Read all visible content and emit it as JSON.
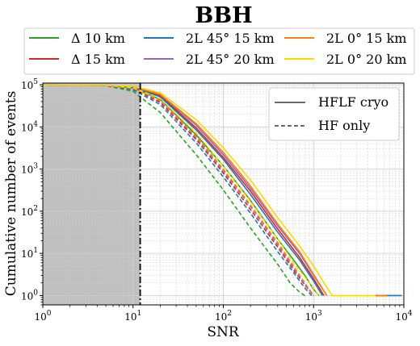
{
  "chart_data": {
    "type": "line",
    "title": "BBH",
    "xlabel": "SNR",
    "ylabel": "Cumulative number of events",
    "x_scale": "log",
    "y_scale": "log",
    "xlim": [
      1,
      10000
    ],
    "ylim": [
      0.6,
      110000
    ],
    "grid": true,
    "threshold_snr": 12,
    "threshold_style": "dash-dot",
    "shaded_region": [
      1,
      12
    ],
    "x_ticks": [
      "10^0",
      "10^1",
      "10^2",
      "10^3",
      "10^4"
    ],
    "y_ticks": [
      "10^0",
      "10^1",
      "10^2",
      "10^3",
      "10^4",
      "10^5"
    ],
    "legend_top": {
      "placement": "top, above plot",
      "entries": [
        "Δ 10 km",
        "Δ 15 km",
        "2L 45° 15 km",
        "2L 45° 20 km",
        "2L 0° 15 km",
        "2L 0° 20 km"
      ]
    },
    "legend_style": {
      "placement": "top-right",
      "entries": [
        "HFLF cryo",
        "HF only"
      ]
    },
    "colors": {
      "Δ 10 km": "#2ca02c",
      "Δ 15 km": "#d62728",
      "2L 45° 15 km": "#1f77b4",
      "2L 45° 20 km": "#9467bd",
      "2L 0° 15 km": "#ff7f0e",
      "2L 0° 20 km": "#ffd700",
      "shade": "#c0c0c0",
      "legend_line": "#555555"
    },
    "series": [
      {
        "name": "Δ 10 km",
        "style": "solid",
        "x": [
          1,
          5,
          10,
          20,
          50,
          100,
          200,
          400,
          600,
          800,
          1000,
          1150
        ],
        "y": [
          100000,
          98000,
          85000,
          45000,
          6500,
          1200,
          180,
          22,
          7,
          3,
          1.4,
          1
        ]
      },
      {
        "name": "Δ 10 km",
        "style": "dashed",
        "x": [
          1,
          5,
          10,
          20,
          50,
          100,
          200,
          400,
          550,
          700,
          800
        ],
        "y": [
          100000,
          96000,
          70000,
          22000,
          2200,
          320,
          40,
          5.5,
          2,
          1.2,
          1
        ]
      },
      {
        "name": "Δ 15 km",
        "style": "solid",
        "x": [
          1,
          5,
          10,
          20,
          50,
          100,
          200,
          400,
          700,
          1000,
          1300
        ],
        "y": [
          100000,
          98500,
          89000,
          55000,
          9500,
          1900,
          300,
          38,
          8,
          2.5,
          1
        ]
      },
      {
        "name": "Δ 15 km",
        "style": "dashed",
        "x": [
          1,
          5,
          10,
          20,
          50,
          100,
          200,
          400,
          600,
          850,
          1000
        ],
        "y": [
          100000,
          97500,
          80000,
          38000,
          5000,
          800,
          110,
          14,
          4,
          1.5,
          1
        ]
      },
      {
        "name": "2L 45° 15 km",
        "style": "solid",
        "x": [
          1,
          5,
          10,
          20,
          50,
          100,
          200,
          400,
          700,
          1000,
          1250
        ],
        "y": [
          100000,
          98300,
          87000,
          52000,
          8500,
          1700,
          250,
          32,
          7,
          2.2,
          1
        ]
      },
      {
        "name": "2L 45° 15 km",
        "style": "dashed",
        "x": [
          1,
          5,
          10,
          20,
          50,
          100,
          200,
          400,
          600,
          800,
          950
        ],
        "y": [
          100000,
          97000,
          76000,
          34000,
          4200,
          650,
          90,
          11,
          3.5,
          1.5,
          1
        ]
      },
      {
        "name": "2L 45° 20 km",
        "style": "solid",
        "x": [
          1,
          5,
          10,
          20,
          50,
          100,
          200,
          400,
          700,
          1000,
          1400
        ],
        "y": [
          100000,
          98700,
          90000,
          58000,
          11000,
          2200,
          350,
          45,
          10,
          3,
          1
        ]
      },
      {
        "name": "2L 45° 20 km",
        "style": "dashed",
        "x": [
          1,
          5,
          10,
          20,
          50,
          100,
          200,
          400,
          600,
          800,
          1000
        ],
        "y": [
          100000,
          97800,
          82000,
          41000,
          5600,
          900,
          130,
          16,
          4.5,
          1.8,
          1
        ]
      },
      {
        "name": "2L 0° 15 km",
        "style": "solid",
        "x": [
          1,
          5,
          10,
          20,
          50,
          100,
          200,
          400,
          700,
          1000,
          1400
        ],
        "y": [
          100000,
          98800,
          91000,
          60000,
          12000,
          2500,
          400,
          50,
          11,
          3.2,
          1
        ]
      },
      {
        "name": "2L 0° 15 km",
        "style": "dashed",
        "x": [
          1,
          5,
          10,
          20,
          50,
          100,
          200,
          400,
          600,
          800,
          1000
        ],
        "y": [
          100000,
          98000,
          83000,
          43000,
          6000,
          1000,
          140,
          18,
          5,
          2,
          1
        ]
      },
      {
        "name": "2L 0° 20 km",
        "style": "solid",
        "x": [
          1,
          5,
          10,
          20,
          50,
          100,
          200,
          400,
          700,
          1000,
          1300,
          1600
        ],
        "y": [
          100000,
          99000,
          93000,
          65000,
          15000,
          3200,
          550,
          70,
          15,
          5,
          2,
          1
        ]
      },
      {
        "name": "2L 0° 20 km",
        "style": "dashed",
        "x": [
          1,
          5,
          10,
          20,
          50,
          100,
          200,
          400,
          600,
          900,
          1150
        ],
        "y": [
          100000,
          98300,
          86000,
          47000,
          7200,
          1200,
          170,
          22,
          6,
          2,
          1
        ]
      }
    ],
    "tail_segments": [
      {
        "series": "2L 0° 20 km",
        "x": [
          1600,
          9500
        ],
        "y": 1
      },
      {
        "series": "2L 45° 15 km",
        "x": [
          5600,
          9500
        ],
        "y": 1
      },
      {
        "series": "Δ 15 km",
        "x": [
          4900,
          5300
        ],
        "y": 1
      },
      {
        "series": "2L 45° 20 km",
        "x": [
          5400,
          5700
        ],
        "y": 1
      },
      {
        "series": "2L 0° 15 km",
        "x": [
          5000,
          6500
        ],
        "y": 1
      }
    ]
  }
}
